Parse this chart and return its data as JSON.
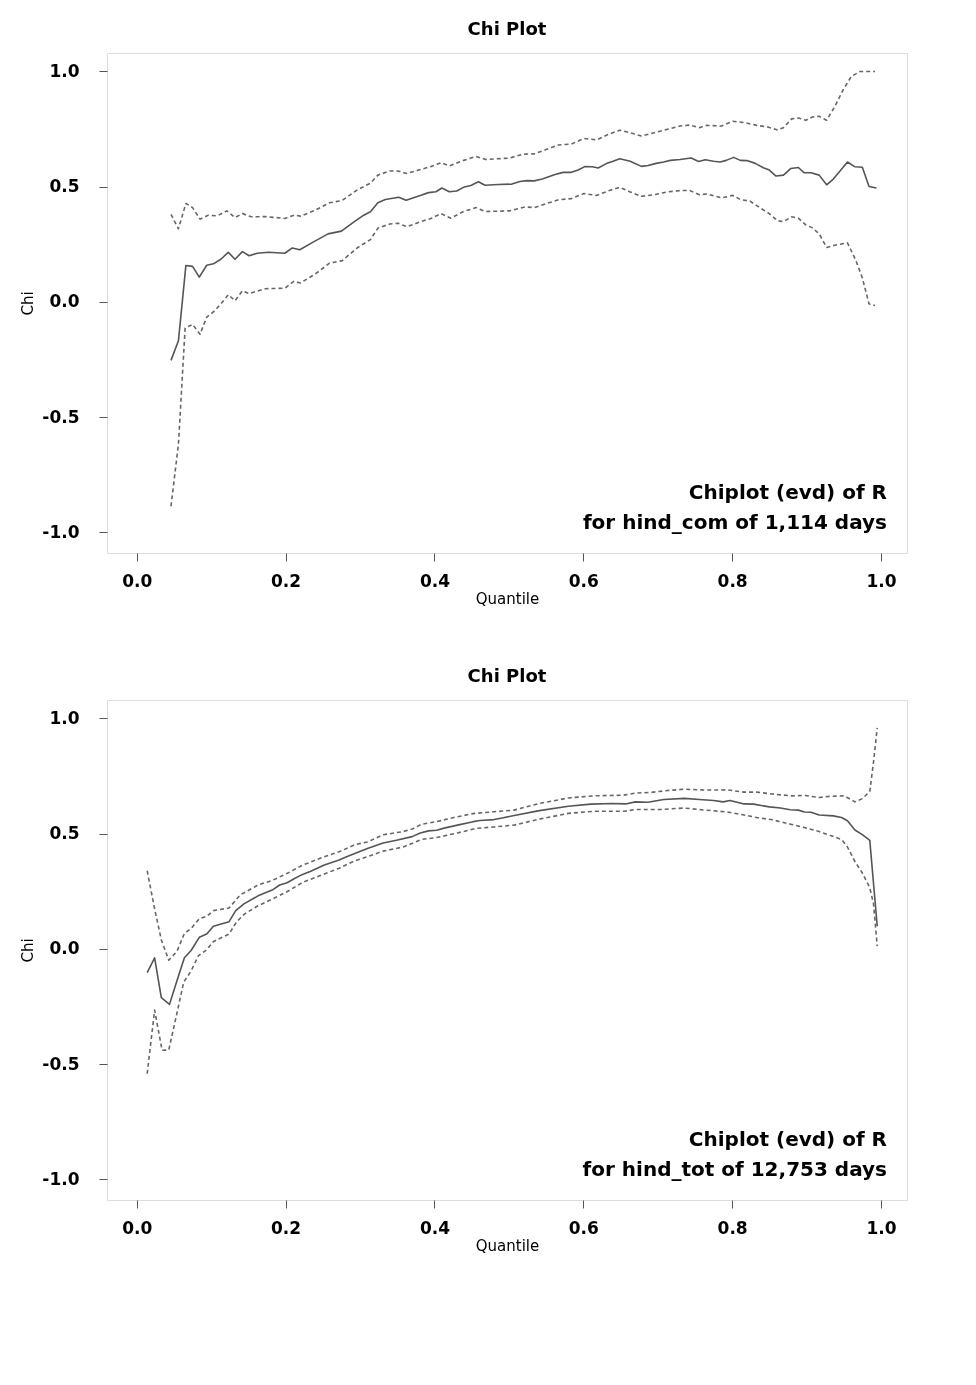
{
  "chart_data": [
    {
      "type": "line",
      "title": "Chi Plot",
      "xlabel": "Quantile",
      "ylabel": "Chi",
      "annotations": [
        "Chiplot (evd) of R",
        "for hind_com of 1,114 days"
      ],
      "xlim": [
        -0.04,
        1.035
      ],
      "ylim": [
        -1.09,
        1.08
      ],
      "grid": false,
      "legend": false,
      "marker": "none",
      "xticks": [
        {
          "value": 0,
          "label": "0.0"
        },
        {
          "value": 0.2,
          "label": "0.2"
        },
        {
          "value": 0.4,
          "label": "0.4"
        },
        {
          "value": 0.6,
          "label": "0.6"
        },
        {
          "value": 0.8,
          "label": "0.8"
        },
        {
          "value": 1,
          "label": "1.0"
        }
      ],
      "yticks": [
        {
          "value": -1,
          "label": "-1.0"
        },
        {
          "value": -0.5,
          "label": "-0.5"
        },
        {
          "value": 0,
          "label": "0.0"
        },
        {
          "value": 0.5,
          "label": "0.5"
        },
        {
          "value": 1,
          "label": "1.0"
        }
      ],
      "series": [
        {
          "color": "#555555",
          "line_style": "solid",
          "x": [
            0.046,
            0.056,
            0.066,
            0.075,
            0.084,
            0.094,
            0.103,
            0.113,
            0.123,
            0.132,
            0.142,
            0.151,
            0.162,
            0.177,
            0.199,
            0.209,
            0.219,
            0.237,
            0.257,
            0.275,
            0.291,
            0.305,
            0.314,
            0.324,
            0.334,
            0.352,
            0.362,
            0.381,
            0.392,
            0.402,
            0.41,
            0.42,
            0.43,
            0.439,
            0.449,
            0.459,
            0.468,
            0.486,
            0.504,
            0.515,
            0.524,
            0.534,
            0.545,
            0.562,
            0.573,
            0.584,
            0.593,
            0.602,
            0.612,
            0.62,
            0.631,
            0.64,
            0.649,
            0.663,
            0.678,
            0.687,
            0.698,
            0.708,
            0.717,
            0.73,
            0.745,
            0.755,
            0.764,
            0.775,
            0.784,
            0.792,
            0.802,
            0.811,
            0.82,
            0.831,
            0.842,
            0.85,
            0.859,
            0.869,
            0.879,
            0.889,
            0.897,
            0.906,
            0.917,
            0.927,
            0.936,
            0.945,
            0.955,
            0.965,
            0.975,
            0.984,
            0.994
          ],
          "values": [
            -0.254,
            -0.169,
            0.158,
            0.154,
            0.107,
            0.159,
            0.165,
            0.185,
            0.215,
            0.185,
            0.218,
            0.2,
            0.211,
            0.215,
            0.211,
            0.234,
            0.226,
            0.259,
            0.295,
            0.307,
            0.345,
            0.376,
            0.391,
            0.43,
            0.444,
            0.454,
            0.441,
            0.462,
            0.474,
            0.478,
            0.494,
            0.478,
            0.481,
            0.497,
            0.505,
            0.521,
            0.506,
            0.509,
            0.511,
            0.522,
            0.526,
            0.525,
            0.533,
            0.553,
            0.562,
            0.562,
            0.572,
            0.587,
            0.586,
            0.581,
            0.6,
            0.61,
            0.621,
            0.61,
            0.588,
            0.592,
            0.601,
            0.607,
            0.614,
            0.618,
            0.624,
            0.609,
            0.617,
            0.61,
            0.607,
            0.614,
            0.627,
            0.614,
            0.613,
            0.601,
            0.582,
            0.572,
            0.546,
            0.55,
            0.579,
            0.583,
            0.56,
            0.56,
            0.55,
            0.508,
            0.533,
            0.568,
            0.607,
            0.586,
            0.584,
            0.501,
            0.494
          ]
        },
        {
          "color": "#666666",
          "line_style": "dashed",
          "x": [
            0.046,
            0.056,
            0.066,
            0.075,
            0.085,
            0.096,
            0.108,
            0.121,
            0.132,
            0.142,
            0.154,
            0.173,
            0.199,
            0.212,
            0.22,
            0.24,
            0.259,
            0.276,
            0.297,
            0.314,
            0.324,
            0.34,
            0.351,
            0.362,
            0.379,
            0.396,
            0.409,
            0.42,
            0.439,
            0.456,
            0.469,
            0.501,
            0.519,
            0.534,
            0.55,
            0.567,
            0.584,
            0.601,
            0.618,
            0.631,
            0.649,
            0.663,
            0.678,
            0.695,
            0.713,
            0.73,
            0.743,
            0.756,
            0.766,
            0.786,
            0.801,
            0.818,
            0.833,
            0.848,
            0.861,
            0.869,
            0.88,
            0.889,
            0.899,
            0.908,
            0.917,
            0.927,
            0.938,
            0.949,
            0.96,
            0.972,
            0.992
          ],
          "values": [
            0.38,
            0.317,
            0.427,
            0.409,
            0.359,
            0.376,
            0.373,
            0.395,
            0.366,
            0.383,
            0.369,
            0.37,
            0.362,
            0.377,
            0.372,
            0.398,
            0.43,
            0.44,
            0.487,
            0.515,
            0.55,
            0.568,
            0.568,
            0.557,
            0.572,
            0.588,
            0.604,
            0.59,
            0.614,
            0.631,
            0.618,
            0.624,
            0.641,
            0.642,
            0.661,
            0.681,
            0.685,
            0.709,
            0.703,
            0.723,
            0.745,
            0.734,
            0.72,
            0.734,
            0.749,
            0.763,
            0.767,
            0.756,
            0.766,
            0.763,
            0.784,
            0.777,
            0.766,
            0.759,
            0.746,
            0.756,
            0.794,
            0.798,
            0.788,
            0.802,
            0.805,
            0.788,
            0.848,
            0.919,
            0.978,
            1.0,
            1.0
          ]
        },
        {
          "color": "#666666",
          "line_style": "dashed",
          "x": [
            0.046,
            0.056,
            0.065,
            0.075,
            0.085,
            0.094,
            0.103,
            0.114,
            0.123,
            0.132,
            0.142,
            0.151,
            0.173,
            0.199,
            0.211,
            0.22,
            0.24,
            0.259,
            0.276,
            0.297,
            0.314,
            0.324,
            0.34,
            0.351,
            0.363,
            0.379,
            0.396,
            0.409,
            0.422,
            0.439,
            0.456,
            0.468,
            0.501,
            0.522,
            0.534,
            0.55,
            0.567,
            0.584,
            0.601,
            0.618,
            0.635,
            0.649,
            0.663,
            0.678,
            0.695,
            0.713,
            0.73,
            0.743,
            0.756,
            0.766,
            0.786,
            0.801,
            0.811,
            0.824,
            0.837,
            0.85,
            0.861,
            0.869,
            0.88,
            0.889,
            0.899,
            0.908,
            0.917,
            0.927,
            0.938,
            0.955,
            0.966,
            0.975,
            0.984,
            0.992
          ],
          "values": [
            -0.887,
            -0.618,
            -0.113,
            -0.098,
            -0.141,
            -0.066,
            -0.044,
            -0.005,
            0.031,
            0.005,
            0.048,
            0.036,
            0.057,
            0.059,
            0.089,
            0.082,
            0.121,
            0.168,
            0.179,
            0.236,
            0.27,
            0.32,
            0.338,
            0.341,
            0.326,
            0.345,
            0.363,
            0.383,
            0.363,
            0.392,
            0.409,
            0.392,
            0.395,
            0.412,
            0.409,
            0.426,
            0.443,
            0.448,
            0.47,
            0.462,
            0.483,
            0.497,
            0.477,
            0.458,
            0.465,
            0.477,
            0.483,
            0.483,
            0.465,
            0.468,
            0.451,
            0.462,
            0.444,
            0.437,
            0.409,
            0.383,
            0.352,
            0.348,
            0.369,
            0.363,
            0.334,
            0.321,
            0.295,
            0.236,
            0.246,
            0.256,
            0.182,
            0.104,
            -0.009,
            -0.016
          ]
        }
      ]
    },
    {
      "type": "line",
      "title": "Chi Plot",
      "xlabel": "Quantile",
      "ylabel": "Chi",
      "annotations": [
        "Chiplot (evd) of R",
        "for hind_tot of 12,753 days"
      ],
      "xlim": [
        -0.04,
        1.035
      ],
      "ylim": [
        -1.09,
        1.08
      ],
      "grid": false,
      "legend": false,
      "marker": "none",
      "xticks": [
        {
          "value": 0,
          "label": "0.0"
        },
        {
          "value": 0.2,
          "label": "0.2"
        },
        {
          "value": 0.4,
          "label": "0.4"
        },
        {
          "value": 0.6,
          "label": "0.6"
        },
        {
          "value": 0.8,
          "label": "0.8"
        },
        {
          "value": 1,
          "label": "1.0"
        }
      ],
      "yticks": [
        {
          "value": -1,
          "label": "-1.0"
        },
        {
          "value": -0.5,
          "label": "-0.5"
        },
        {
          "value": 0,
          "label": "0.0"
        },
        {
          "value": 0.5,
          "label": "0.5"
        },
        {
          "value": 1,
          "label": "1.0"
        }
      ],
      "series": [
        {
          "color": "#555555",
          "line_style": "solid",
          "x": [
            0.014,
            0.024,
            0.033,
            0.044,
            0.054,
            0.064,
            0.073,
            0.084,
            0.094,
            0.103,
            0.124,
            0.133,
            0.144,
            0.163,
            0.182,
            0.192,
            0.202,
            0.212,
            0.222,
            0.233,
            0.252,
            0.272,
            0.282,
            0.293,
            0.31,
            0.331,
            0.349,
            0.37,
            0.381,
            0.392,
            0.403,
            0.413,
            0.431,
            0.452,
            0.461,
            0.48,
            0.491,
            0.509,
            0.541,
            0.58,
            0.61,
            0.638,
            0.657,
            0.67,
            0.687,
            0.708,
            0.736,
            0.756,
            0.775,
            0.788,
            0.797,
            0.816,
            0.829,
            0.85,
            0.865,
            0.878,
            0.889,
            0.897,
            0.906,
            0.917,
            0.936,
            0.947,
            0.955,
            0.965,
            0.975,
            0.985,
            0.995
          ],
          "values": [
            -0.103,
            -0.039,
            -0.212,
            -0.241,
            -0.138,
            -0.039,
            -0.007,
            0.05,
            0.064,
            0.098,
            0.118,
            0.166,
            0.195,
            0.23,
            0.255,
            0.277,
            0.287,
            0.305,
            0.322,
            0.336,
            0.364,
            0.386,
            0.4,
            0.414,
            0.435,
            0.459,
            0.471,
            0.487,
            0.503,
            0.512,
            0.515,
            0.524,
            0.537,
            0.552,
            0.557,
            0.561,
            0.568,
            0.58,
            0.6,
            0.619,
            0.628,
            0.631,
            0.629,
            0.638,
            0.636,
            0.648,
            0.653,
            0.648,
            0.644,
            0.638,
            0.644,
            0.629,
            0.628,
            0.616,
            0.611,
            0.604,
            0.602,
            0.594,
            0.593,
            0.581,
            0.577,
            0.57,
            0.556,
            0.516,
            0.496,
            0.471,
            0.098
          ]
        },
        {
          "color": "#666666",
          "line_style": "dashed",
          "x": [
            0.014,
            0.024,
            0.033,
            0.043,
            0.054,
            0.064,
            0.073,
            0.084,
            0.094,
            0.103,
            0.124,
            0.139,
            0.163,
            0.182,
            0.203,
            0.222,
            0.252,
            0.272,
            0.293,
            0.31,
            0.331,
            0.358,
            0.37,
            0.383,
            0.403,
            0.426,
            0.452,
            0.48,
            0.507,
            0.541,
            0.58,
            0.614,
            0.655,
            0.67,
            0.691,
            0.713,
            0.736,
            0.764,
            0.794,
            0.816,
            0.833,
            0.854,
            0.88,
            0.897,
            0.917,
            0.932,
            0.951,
            0.965,
            0.975,
            0.985,
            0.99,
            0.995
          ],
          "values": [
            0.339,
            0.173,
            0.039,
            -0.049,
            -0.011,
            0.067,
            0.088,
            0.131,
            0.141,
            0.166,
            0.177,
            0.234,
            0.277,
            0.297,
            0.329,
            0.362,
            0.4,
            0.421,
            0.452,
            0.464,
            0.495,
            0.509,
            0.52,
            0.541,
            0.552,
            0.57,
            0.587,
            0.595,
            0.602,
            0.631,
            0.655,
            0.664,
            0.667,
            0.676,
            0.679,
            0.687,
            0.693,
            0.689,
            0.69,
            0.68,
            0.68,
            0.672,
            0.664,
            0.666,
            0.657,
            0.662,
            0.664,
            0.638,
            0.652,
            0.683,
            0.811,
            0.959
          ]
        },
        {
          "color": "#666666",
          "line_style": "dashed",
          "x": [
            0.014,
            0.024,
            0.034,
            0.043,
            0.053,
            0.063,
            0.073,
            0.083,
            0.094,
            0.103,
            0.124,
            0.134,
            0.145,
            0.163,
            0.182,
            0.202,
            0.222,
            0.252,
            0.272,
            0.293,
            0.31,
            0.331,
            0.358,
            0.383,
            0.403,
            0.431,
            0.456,
            0.48,
            0.507,
            0.541,
            0.58,
            0.614,
            0.655,
            0.67,
            0.704,
            0.736,
            0.764,
            0.794,
            0.816,
            0.833,
            0.854,
            0.88,
            0.897,
            0.917,
            0.932,
            0.947,
            0.955,
            0.965,
            0.975,
            0.985,
            0.99,
            0.995
          ],
          "values": [
            -0.542,
            -0.266,
            -0.44,
            -0.439,
            -0.294,
            -0.145,
            -0.096,
            -0.029,
            -0.004,
            0.032,
            0.064,
            0.117,
            0.152,
            0.187,
            0.216,
            0.248,
            0.287,
            0.325,
            0.35,
            0.382,
            0.4,
            0.424,
            0.442,
            0.475,
            0.483,
            0.503,
            0.523,
            0.529,
            0.537,
            0.563,
            0.588,
            0.597,
            0.597,
            0.605,
            0.605,
            0.611,
            0.602,
            0.594,
            0.581,
            0.57,
            0.56,
            0.54,
            0.527,
            0.509,
            0.492,
            0.475,
            0.442,
            0.379,
            0.329,
            0.265,
            0.195,
            0.012
          ]
        }
      ]
    }
  ]
}
